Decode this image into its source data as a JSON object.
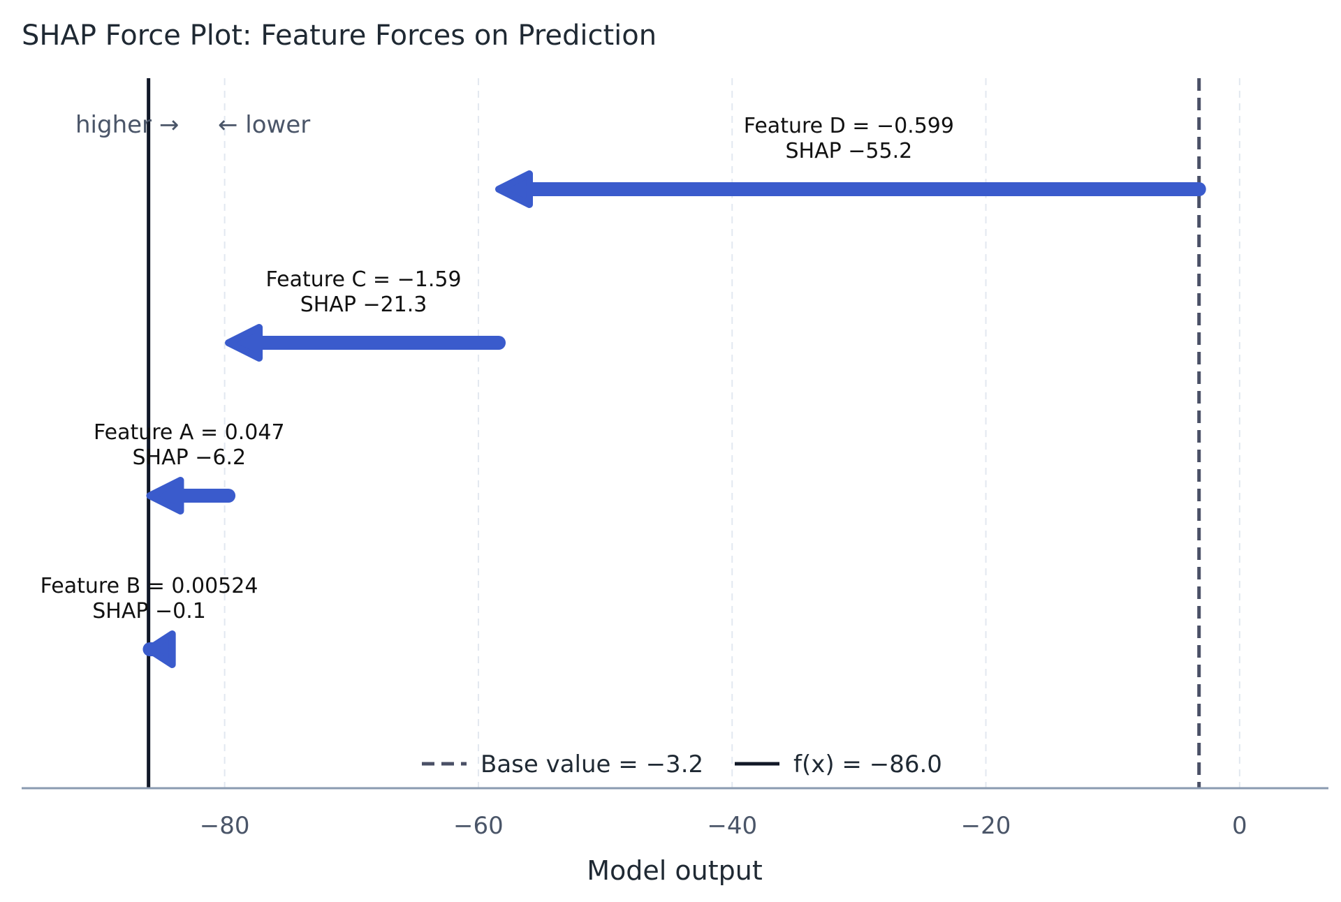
{
  "chart_data": {
    "type": "bar",
    "title": "SHAP Force Plot: Feature Forces on Prediction",
    "xlabel": "Model output",
    "ylabel": "",
    "xlim": [
      -96,
      7
    ],
    "xticks": [
      -80,
      -60,
      -40,
      -20,
      0
    ],
    "xtick_labels": [
      "−80",
      "−60",
      "−40",
      "−20",
      "0"
    ],
    "grid": "vertical dashed",
    "base_value": -3.2,
    "fx": -86.0,
    "direction_labels": {
      "higher": "higher →",
      "lower": "← lower"
    },
    "legend": {
      "placement": "bottom-center",
      "entries": [
        {
          "label": "Base value = −3.2",
          "style": "dashed",
          "color": "#4a5066"
        },
        {
          "label": "f(x) = −86.0",
          "style": "solid",
          "color": "#111827"
        }
      ]
    },
    "forces": [
      {
        "feature": "Feature D",
        "label": "Feature D = −0.599",
        "shap_label": "SHAP −55.2",
        "start": -3.2,
        "end": -58.4
      },
      {
        "feature": "Feature C",
        "label": "Feature C = −1.59",
        "shap_label": "SHAP −21.3",
        "start": -58.4,
        "end": -79.7
      },
      {
        "feature": "Feature A",
        "label": "Feature A = 0.047",
        "shap_label": "SHAP −6.2",
        "start": -79.7,
        "end": -85.9
      },
      {
        "feature": "Feature B",
        "label": "Feature B = 0.00524",
        "shap_label": "SHAP −0.1",
        "start": -85.9,
        "end": -86.0
      }
    ],
    "colors": {
      "negative": "#3a5bcc",
      "grid": "#e2e8f0",
      "axis": "#8a9ab0"
    }
  }
}
